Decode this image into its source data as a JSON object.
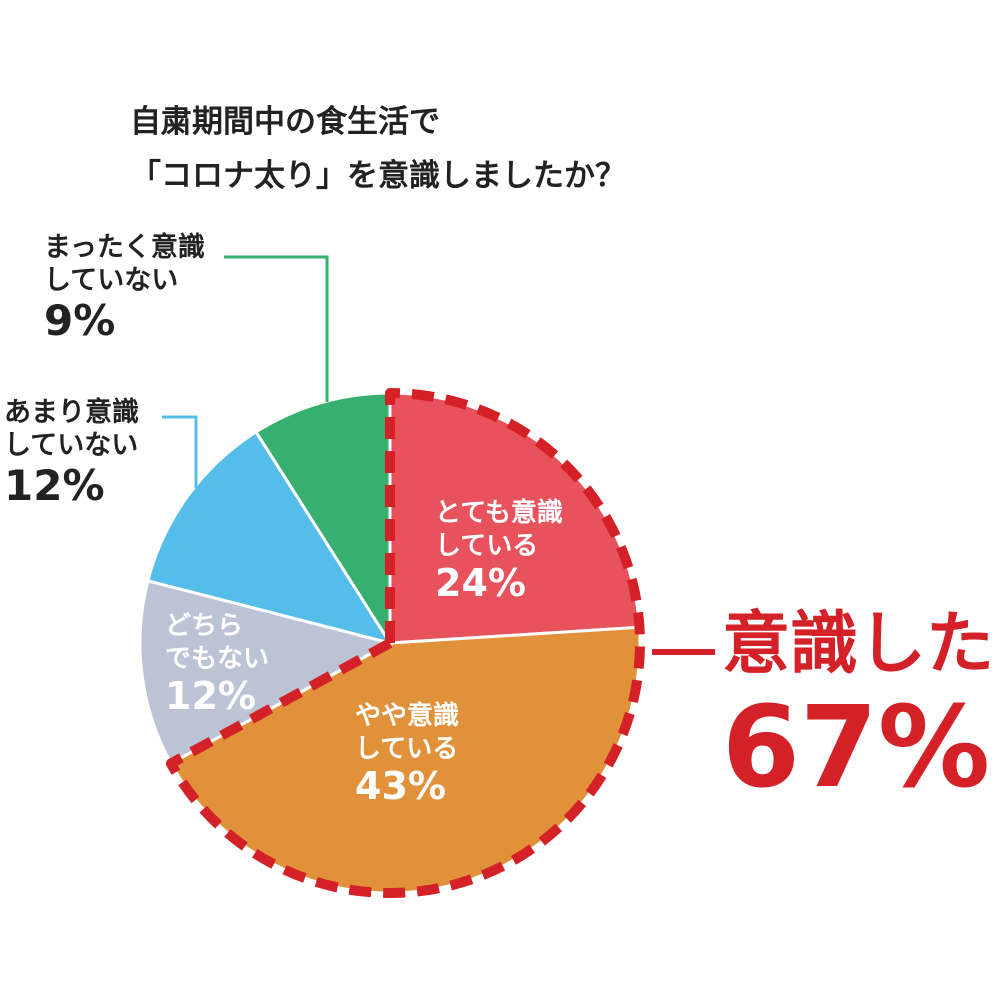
{
  "title": {
    "line1": "自粛期間中の食生活で",
    "line2": "「コロナ太り」を意識しましたか？"
  },
  "chart_data": {
    "type": "pie",
    "title": "自粛期間中の食生活で「コロナ太り」を意識しましたか？",
    "slices": [
      {
        "key": "very",
        "line1": "とても意識",
        "line2": "している",
        "value": 24,
        "value_label": "24%",
        "color": "#e8525c",
        "label_placement": "inside"
      },
      {
        "key": "somewhat",
        "line1": "やや意識",
        "line2": "している",
        "value": 43,
        "value_label": "43%",
        "color": "#e2913b",
        "label_placement": "inside"
      },
      {
        "key": "neutral",
        "line1": "どちら",
        "line2": "でもない",
        "value": 12,
        "value_label": "12%",
        "color": "#bcc3d5",
        "label_placement": "inside"
      },
      {
        "key": "little",
        "line1": "あまり意識",
        "line2": "していない",
        "value": 12,
        "value_label": "12%",
        "color": "#55bdea",
        "label_placement": "outside"
      },
      {
        "key": "none",
        "line1": "まったく意識",
        "line2": "していない",
        "value": 9,
        "value_label": "9%",
        "color": "#36b06f",
        "label_placement": "outside"
      }
    ],
    "start": "top, clockwise",
    "highlight": {
      "label": "意識した",
      "value": 67,
      "value_label": "67%",
      "color": "#d42027",
      "slices": [
        "very",
        "somewhat"
      ]
    }
  }
}
